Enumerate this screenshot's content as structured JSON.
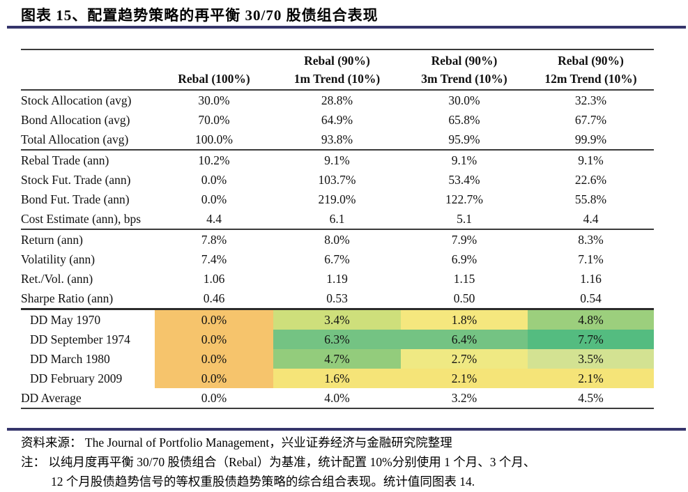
{
  "title": "图表  15、配置趋势策略的再平衡 30/70 股债组合表现",
  "accent_color": "#35356B",
  "table": {
    "columns": [
      {
        "line1": "",
        "line2": ""
      },
      {
        "line1": "",
        "line2": "Rebal (100%)"
      },
      {
        "line1": "Rebal (90%)",
        "line2": "1m Trend (10%)"
      },
      {
        "line1": "Rebal (90%)",
        "line2": "3m Trend (10%)"
      },
      {
        "line1": "Rebal (90%)",
        "line2": "12m Trend (10%)"
      }
    ],
    "palette": {
      "orange": "#F6C46C",
      "yellow_green": "#CEDF7B",
      "yellow": "#F5E77E",
      "light_green": "#9CCF7D",
      "green": "#74C383",
      "dark_green": "#54BC80",
      "light_green2": "#93CC7C",
      "pale_yellow": "#EFE983",
      "pale_green": "#D3E292",
      "yellow2": "#F5E478"
    },
    "rows": [
      {
        "label": "Stock Allocation (avg)",
        "values": [
          "30.0%",
          "28.8%",
          "30.0%",
          "32.3%"
        ]
      },
      {
        "label": "Bond Allocation (avg)",
        "values": [
          "70.0%",
          "64.9%",
          "65.8%",
          "67.7%"
        ]
      },
      {
        "label": "Total Allocation (avg)",
        "values": [
          "100.0%",
          "93.8%",
          "95.9%",
          "99.9%"
        ],
        "section_end": true
      },
      {
        "label": "Rebal Trade (ann)",
        "values": [
          "10.2%",
          "9.1%",
          "9.1%",
          "9.1%"
        ]
      },
      {
        "label": "Stock Fut. Trade (ann)",
        "values": [
          "0.0%",
          "103.7%",
          "53.4%",
          "22.6%"
        ]
      },
      {
        "label": "Bond Fut. Trade (ann)",
        "values": [
          "0.0%",
          "219.0%",
          "122.7%",
          "55.8%"
        ]
      },
      {
        "label": "Cost Estimate (ann), bps",
        "values": [
          "4.4",
          "6.1",
          "5.1",
          "4.4"
        ],
        "section_end": true
      },
      {
        "label": "Return (ann)",
        "values": [
          "7.8%",
          "8.0%",
          "7.9%",
          "8.3%"
        ]
      },
      {
        "label": "Volatility (ann)",
        "values": [
          "7.4%",
          "6.7%",
          "6.9%",
          "7.1%"
        ]
      },
      {
        "label": "Ret./Vol. (ann)",
        "values": [
          "1.06",
          "1.19",
          "1.15",
          "1.16"
        ]
      },
      {
        "label": "Sharpe Ratio (ann)",
        "values": [
          "0.46",
          "0.53",
          "0.50",
          "0.54"
        ],
        "section_end_dark": true
      },
      {
        "label": "DD May 1970",
        "indent": true,
        "values": [
          "0.0%",
          "3.4%",
          "1.8%",
          "4.8%"
        ],
        "colors": [
          "orange",
          "yellow_green",
          "yellow",
          "light_green"
        ]
      },
      {
        "label": "DD September 1974",
        "indent": true,
        "values": [
          "0.0%",
          "6.3%",
          "6.4%",
          "7.7%"
        ],
        "colors": [
          "orange",
          "green",
          "green",
          "dark_green"
        ]
      },
      {
        "label": "DD March 1980",
        "indent": true,
        "values": [
          "0.0%",
          "4.7%",
          "2.7%",
          "3.5%"
        ],
        "colors": [
          "orange",
          "light_green2",
          "pale_yellow",
          "pale_green"
        ]
      },
      {
        "label": "DD February 2009",
        "indent": true,
        "values": [
          "0.0%",
          "1.6%",
          "2.1%",
          "2.1%"
        ],
        "colors": [
          "orange",
          "yellow2",
          "yellow2",
          "yellow2"
        ]
      },
      {
        "label": "DD Average",
        "values": [
          "0.0%",
          "4.0%",
          "3.2%",
          "4.5%"
        ]
      }
    ]
  },
  "footer": {
    "source": "资料来源： The Journal of Portfolio Management，兴业证券经济与金融研究院整理",
    "note_line1": "注： 以纯月度再平衡 30/70 股债组合（Rebal）为基准，统计配置 10%分别使用 1 个月、3 个月、",
    "note_line2": "12 个月股债趋势信号的等权重股债趋势策略的综合组合表现。统计值同图表 14."
  }
}
